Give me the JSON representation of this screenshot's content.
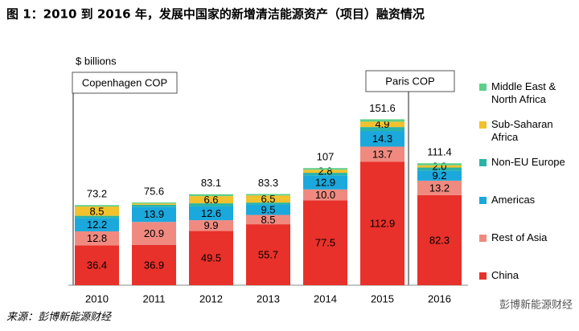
{
  "chart_data": {
    "type": "stacked_bar",
    "title": "图 1：2010 到 2016 年，发展中国家的新增清洁能源资产（项目）融资情况",
    "unit_label": "$ billions",
    "annotations": [
      "Copenhagen COP",
      "Paris COP"
    ],
    "source": "来源：彭博新能源财经",
    "watermark": "彭博新能源财经",
    "categories": [
      "2010",
      "2011",
      "2012",
      "2013",
      "2014",
      "2015",
      "2016"
    ],
    "totals": [
      73.2,
      75.6,
      83.1,
      83.3,
      107.0,
      151.6,
      111.4
    ],
    "ylim": [
      0,
      160
    ],
    "series": [
      {
        "name": "China",
        "color": "#e8312a",
        "values": [
          36.4,
          36.9,
          49.5,
          55.7,
          77.5,
          112.9,
          82.3
        ]
      },
      {
        "name": "Rest of Asia",
        "color": "#f08a80",
        "values": [
          12.8,
          20.9,
          9.9,
          8.5,
          10.0,
          13.7,
          13.2
        ]
      },
      {
        "name": "Americas",
        "color": "#1ba8dc",
        "values": [
          12.2,
          13.9,
          12.6,
          9.5,
          12.9,
          14.3,
          9.2
        ]
      },
      {
        "name": "Non-EU Europe",
        "color": "#2ab3a6",
        "values": [
          2.0,
          1.8,
          2.8,
          1.8,
          2.3,
          3.6,
          2.8
        ]
      },
      {
        "name": "Sub-Saharan Africa",
        "color": "#f2c12e",
        "values": [
          8.5,
          1.2,
          6.6,
          6.5,
          2.8,
          4.9,
          2.0
        ]
      },
      {
        "name": "Middle East & North Africa",
        "color": "#5cd08a",
        "values": [
          1.3,
          0.9,
          1.7,
          1.3,
          1.5,
          2.2,
          1.9
        ]
      }
    ],
    "value_labels": [
      [
        "36.4",
        "36.9",
        "49.5",
        "55.7",
        "77.5",
        "112.9",
        "82.3"
      ],
      [
        "12.8",
        "20.9",
        "9.9",
        "8.5",
        "10.0",
        "13.7",
        "13.2"
      ],
      [
        "12.2",
        "13.9",
        "12.6",
        "9.5",
        "12.9",
        "14.3",
        "9.2"
      ],
      [
        null,
        null,
        null,
        null,
        null,
        null,
        null
      ],
      [
        "8.5",
        null,
        "6.6",
        "6.5",
        "2.8",
        "4.9",
        "2.0"
      ],
      [
        null,
        null,
        null,
        null,
        null,
        null,
        null
      ]
    ]
  }
}
